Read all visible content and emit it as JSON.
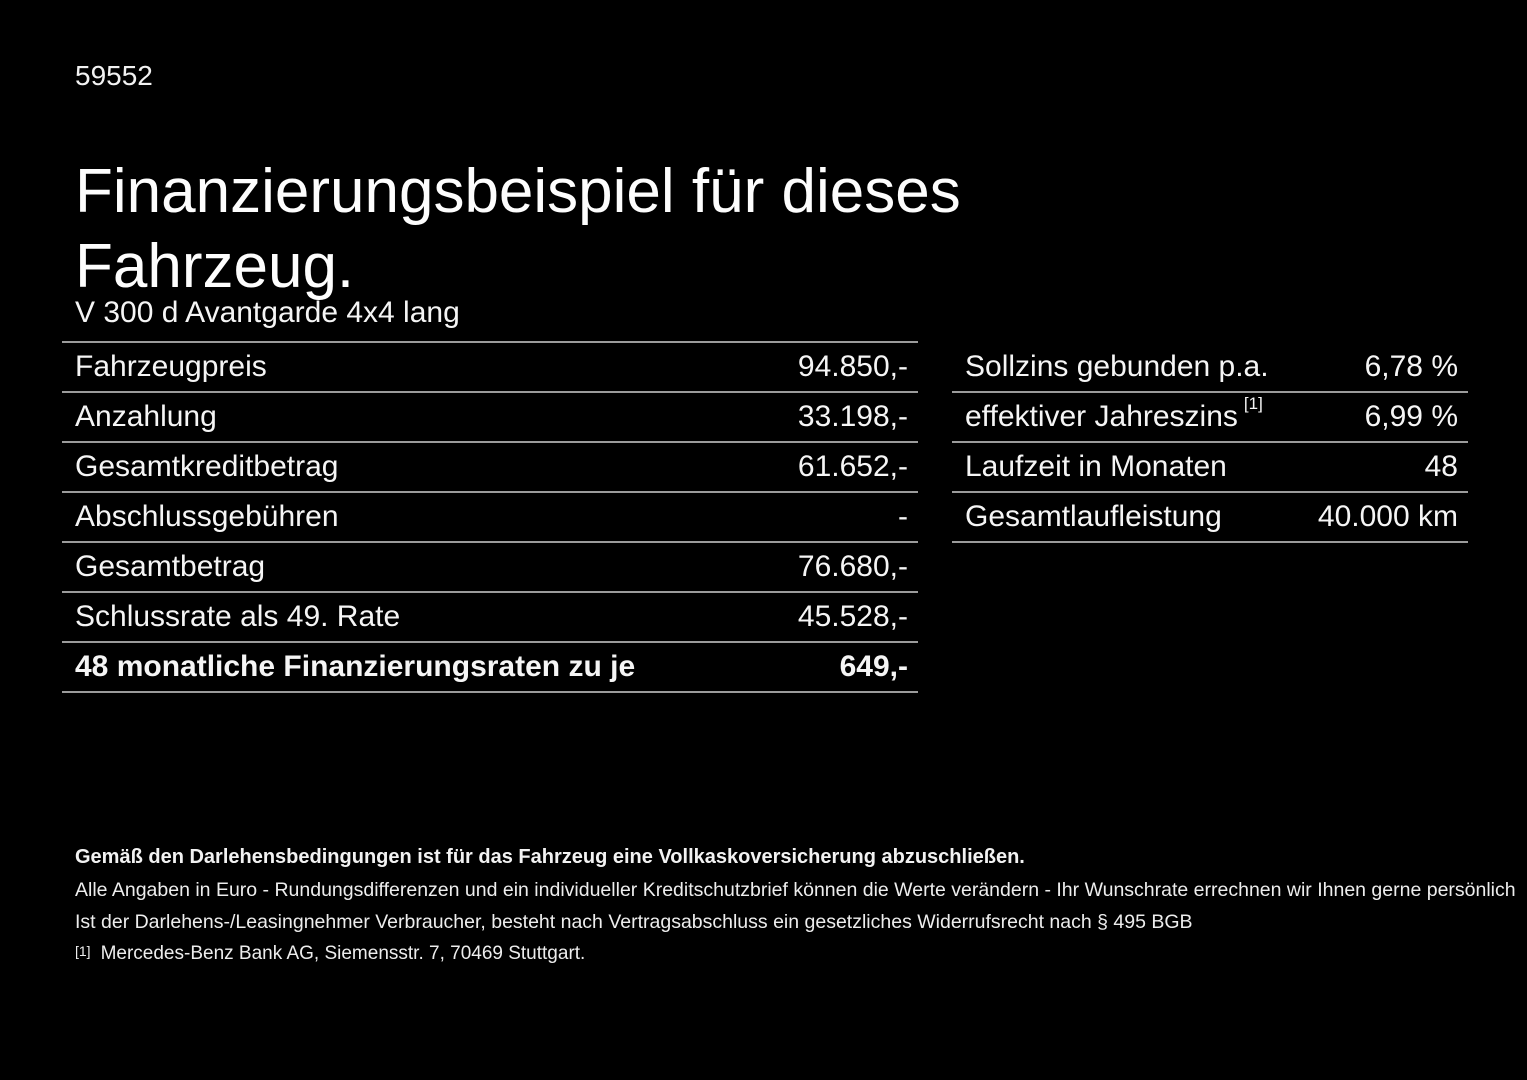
{
  "page": {
    "code": "59552",
    "title": "Finanzierungsbeispiel für dieses Fahrzeug.",
    "model": "V 300 d Avantgarde 4x4 lang"
  },
  "finance_table": {
    "rows": [
      {
        "label": "Fahrzeugpreis",
        "value": "94.850,-"
      },
      {
        "label": "Anzahlung",
        "value": "33.198,-"
      },
      {
        "label": "Gesamtkreditbetrag",
        "value": "61.652,-"
      },
      {
        "label": "Abschlussgebühren",
        "value": "-"
      },
      {
        "label": "Gesamtbetrag",
        "value": "76.680,-"
      },
      {
        "label": "Schlussrate als 49. Rate",
        "value": "45.528,-"
      },
      {
        "label": "48 monatliche Finanzierungsraten zu je",
        "value": "649,-"
      }
    ]
  },
  "conditions_table": {
    "rows": [
      {
        "label": "Sollzins gebunden p.a.",
        "value": "6,78 %"
      },
      {
        "label": "effektiver Jahreszins",
        "sup": "[1]",
        "value": "6,99 %"
      },
      {
        "label": "Laufzeit in Monaten",
        "value": "48"
      },
      {
        "label": "Gesamtlaufleistung",
        "value": "40.000 km"
      }
    ]
  },
  "footnotes": {
    "insurance": "Gemäß den Darlehensbedingungen ist für das Fahrzeug eine Vollkaskoversicherung abzuschließen.",
    "disclaimer1": "Alle Angaben in Euro - Rundungsdifferenzen und ein individueller Kreditschutzbrief können die Werte verändern - Ihr Wunschrate errechnen wir Ihnen gerne persönlich",
    "disclaimer2": "Ist der Darlehens-/Leasingnehmer Verbraucher, besteht nach Vertragsabschluss ein gesetzliches Widerrufsrecht nach § 495 BGB",
    "reference_marker": "[1]",
    "reference": "Mercedes-Benz Bank AG, Siemensstr. 7, 70469 Stuttgart."
  },
  "colors": {
    "background": "#000000",
    "text": "#ffffff",
    "divider": "#9b9b9b"
  }
}
